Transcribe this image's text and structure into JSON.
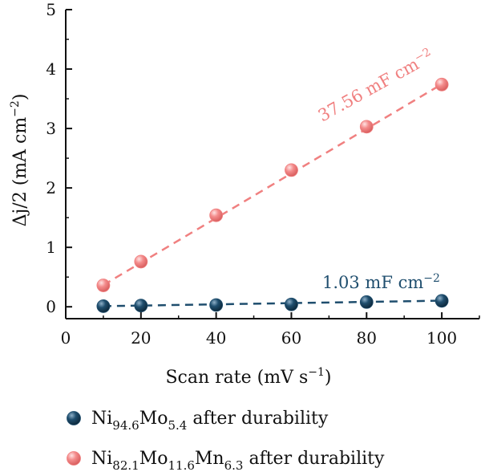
{
  "chart_data": {
    "type": "scatter",
    "xlabel": "Scan rate (mV s",
    "xlabel_sup": "−1",
    "xlabel_end": ")",
    "ylabel": "Δj/2 (mA cm",
    "ylabel_sup": "−2",
    "ylabel_end": ")",
    "xlim": [
      0,
      110
    ],
    "ylim": [
      -0.2,
      5
    ],
    "xticks": [
      "0",
      "20",
      "40",
      "60",
      "80",
      "100"
    ],
    "yticks": [
      "0",
      "1",
      "2",
      "3",
      "4",
      "5"
    ],
    "grid": false,
    "legend_position": "bottom",
    "series": [
      {
        "name_parts": [
          [
            "Ni",
            false
          ],
          [
            "94.6",
            true
          ],
          [
            "Mo",
            false
          ],
          [
            "5.4",
            true
          ],
          [
            " after durability",
            false
          ]
        ],
        "color": "#1f4e6e",
        "x": [
          10,
          20,
          40,
          60,
          80,
          100
        ],
        "y": [
          0.01,
          0.02,
          0.03,
          0.04,
          0.08,
          0.1
        ],
        "fit_label": "1.03 mF cm",
        "fit_label_sup": "−2",
        "fit": [
          0.0,
          0.00103
        ]
      },
      {
        "name_parts": [
          [
            "Ni",
            false
          ],
          [
            "82.1",
            true
          ],
          [
            "Mo",
            false
          ],
          [
            "11.6",
            true
          ],
          [
            "Mn",
            false
          ],
          [
            "6.3",
            true
          ],
          [
            " after durability",
            false
          ]
        ],
        "color": "#f08080",
        "x": [
          10,
          20,
          40,
          60,
          80,
          100
        ],
        "y": [
          0.36,
          0.76,
          1.54,
          2.3,
          3.03,
          3.74
        ],
        "fit_label": "37.56 mF cm",
        "fit_label_sup": "−2",
        "fit": [
          -0.01,
          0.03756
        ]
      }
    ]
  }
}
